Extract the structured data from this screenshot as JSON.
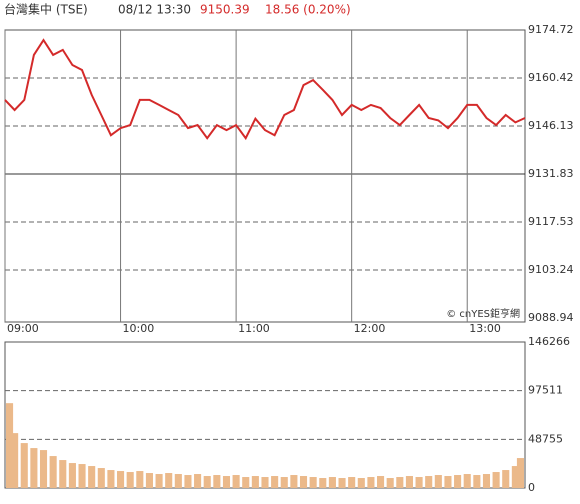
{
  "header": {
    "title": "台灣集中 (TSE)",
    "time": "08/12 13:30",
    "price": "9150.39",
    "change": "18.56 (0.20%)"
  },
  "watermark": "© cnYES鉅亨網",
  "chart_data": [
    {
      "type": "line",
      "color": "#d42a2a",
      "x": [
        "09:00",
        "09:05",
        "09:10",
        "09:15",
        "09:20",
        "09:25",
        "09:30",
        "09:35",
        "09:40",
        "09:45",
        "09:50",
        "09:55",
        "10:00",
        "10:05",
        "10:10",
        "10:15",
        "10:20",
        "10:25",
        "10:30",
        "10:35",
        "10:40",
        "10:45",
        "10:50",
        "10:55",
        "11:00",
        "11:05",
        "11:10",
        "11:15",
        "11:20",
        "11:25",
        "11:30",
        "11:35",
        "11:40",
        "11:45",
        "11:50",
        "11:55",
        "12:00",
        "12:05",
        "12:10",
        "12:15",
        "12:20",
        "12:25",
        "12:30",
        "12:35",
        "12:40",
        "12:45",
        "12:50",
        "12:55",
        "13:00",
        "13:05",
        "13:10",
        "13:15",
        "13:20",
        "13:25",
        "13:30"
      ],
      "values": [
        9153.9,
        9150.9,
        9153.9,
        9167.3,
        9171.7,
        9167.3,
        9168.8,
        9164.3,
        9162.8,
        9155.4,
        9149.4,
        9143.4,
        9145.5,
        9146.4,
        9153.9,
        9153.9,
        9152.4,
        9150.9,
        9149.4,
        9145.5,
        9146.4,
        9142.5,
        9146.4,
        9144.9,
        9146.4,
        9142.5,
        9148.3,
        9144.9,
        9143.4,
        9149.4,
        9150.9,
        9158.3,
        9159.8,
        9156.9,
        9153.9,
        9149.4,
        9152.4,
        9150.9,
        9152.4,
        9151.5,
        9148.5,
        9146.4,
        9149.4,
        9152.4,
        9148.5,
        9147.8,
        9145.5,
        9148.5,
        9152.4,
        9152.4,
        9148.5,
        9146.4,
        9149.4,
        9147.2,
        9148.5
      ],
      "xlim": [
        "09:00",
        "13:30"
      ],
      "xticks": [
        "09:00",
        "10:00",
        "11:00",
        "12:00",
        "13:00"
      ],
      "ylim": [
        9088.94,
        9174.72
      ],
      "yticks": [
        9088.94,
        9103.24,
        9117.53,
        9131.83,
        9146.13,
        9160.42,
        9174.72
      ],
      "grid": true
    },
    {
      "type": "bar",
      "color": "#ebb98a",
      "x": [
        "09:00",
        "09:05",
        "09:10",
        "09:15",
        "09:20",
        "09:25",
        "09:30",
        "09:35",
        "09:40",
        "09:45",
        "09:50",
        "09:55",
        "10:00",
        "10:05",
        "10:10",
        "10:15",
        "10:20",
        "10:25",
        "10:30",
        "10:35",
        "10:40",
        "10:45",
        "10:50",
        "10:55",
        "11:00",
        "11:05",
        "11:10",
        "11:15",
        "11:20",
        "11:25",
        "11:30",
        "11:35",
        "11:40",
        "11:45",
        "11:50",
        "11:55",
        "12:00",
        "12:05",
        "12:10",
        "12:15",
        "12:20",
        "12:25",
        "12:30",
        "12:35",
        "12:40",
        "12:45",
        "12:50",
        "12:55",
        "13:00",
        "13:05",
        "13:10",
        "13:15",
        "13:20",
        "13:25",
        "13:30"
      ],
      "values": [
        85000,
        55000,
        45000,
        40000,
        38000,
        32000,
        28000,
        25000,
        24000,
        22000,
        20000,
        18000,
        17000,
        16000,
        17000,
        15000,
        14000,
        15000,
        14000,
        13000,
        14000,
        12000,
        13000,
        12000,
        13000,
        11000,
        12000,
        11000,
        12000,
        11000,
        13000,
        12000,
        11000,
        10000,
        11000,
        10000,
        11000,
        10000,
        11000,
        12000,
        10000,
        11000,
        12000,
        11000,
        12000,
        13000,
        12000,
        13000,
        14000,
        13000,
        14000,
        16000,
        18000,
        22000,
        30000
      ],
      "xlim": [
        "09:00",
        "13:30"
      ],
      "ylim": [
        0,
        146266
      ],
      "yticks": [
        0,
        48755,
        97511,
        146266
      ],
      "grid": true
    }
  ]
}
